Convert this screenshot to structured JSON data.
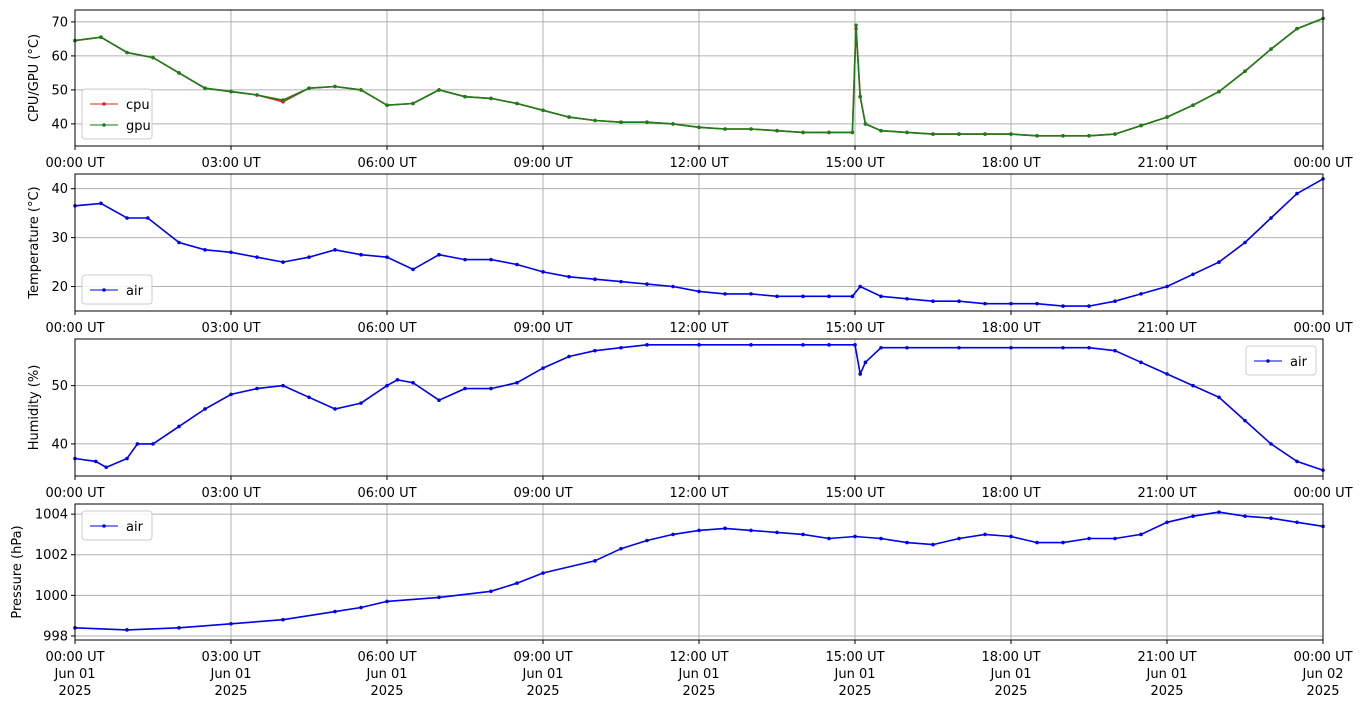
{
  "x_tick_labels": [
    "00:00 UT",
    "03:00 UT",
    "06:00 UT",
    "09:00 UT",
    "12:00 UT",
    "15:00 UT",
    "18:00 UT",
    "21:00 UT",
    "00:00 UT"
  ],
  "bottom_date_lines": [
    [
      "Jun 01",
      "2025"
    ],
    [
      "Jun 01",
      "2025"
    ],
    [
      "Jun 01",
      "2025"
    ],
    [
      "Jun 01",
      "2025"
    ],
    [
      "Jun 01",
      "2025"
    ],
    [
      "Jun 01",
      "2025"
    ],
    [
      "Jun 01",
      "2025"
    ],
    [
      "Jun 01",
      "2025"
    ],
    [
      "Jun 02",
      "2025"
    ]
  ],
  "colors": {
    "cpu": "#d62728",
    "gpu": "#1a7f1a",
    "air": "#0000ee",
    "grid": "#b0b0b0"
  },
  "chart_data": [
    {
      "type": "line",
      "ylabel": "CPU/GPU (°C)",
      "ylim": [
        33.5,
        73.5
      ],
      "yticks": [
        40,
        50,
        60,
        70
      ],
      "grid": true,
      "legend": "lower-left",
      "x_hours": [
        0,
        0.5,
        1,
        1.5,
        2,
        2.5,
        3,
        3.5,
        4,
        4.5,
        5,
        5.5,
        6,
        6.5,
        7,
        7.5,
        8,
        8.5,
        9,
        9.5,
        10,
        10.5,
        11,
        11.5,
        12,
        12.5,
        13,
        13.5,
        14,
        14.5,
        14.95,
        15.02,
        15.1,
        15.2,
        15.5,
        16,
        16.5,
        17,
        17.5,
        18,
        18.5,
        19,
        19.5,
        20,
        20.5,
        21,
        21.5,
        22,
        22.5,
        23,
        23.5,
        24
      ],
      "series": [
        {
          "name": "cpu",
          "color_key": "cpu",
          "values": [
            64.5,
            65.5,
            61,
            59.5,
            55,
            50.5,
            49.5,
            48.5,
            46.5,
            50.5,
            51,
            50,
            45.5,
            46,
            50,
            48,
            47.5,
            46,
            44,
            42,
            41,
            40.5,
            40.5,
            40,
            39,
            38.5,
            38.5,
            38,
            37.5,
            37.5,
            37.5,
            68,
            48,
            40,
            38,
            37.5,
            37,
            37,
            37,
            37,
            36.5,
            36.5,
            36.5,
            37,
            39.5,
            42,
            45.5,
            49.5,
            55.5,
            62,
            68,
            71
          ]
        },
        {
          "name": "gpu",
          "color_key": "gpu",
          "values": [
            64.5,
            65.5,
            61,
            59.5,
            55,
            50.5,
            49.5,
            48.5,
            47,
            50.5,
            51,
            50,
            45.5,
            46,
            50,
            48,
            47.5,
            46,
            44,
            42,
            41,
            40.5,
            40.5,
            40,
            39,
            38.5,
            38.5,
            38,
            37.5,
            37.5,
            37.5,
            69,
            48,
            40,
            38,
            37.5,
            37,
            37,
            37,
            37,
            36.5,
            36.5,
            36.5,
            37,
            39.5,
            42,
            45.5,
            49.5,
            55.5,
            62,
            68,
            71
          ]
        }
      ]
    },
    {
      "type": "line",
      "ylabel": "Temperature (°C)",
      "ylim": [
        15,
        43
      ],
      "yticks": [
        20,
        30,
        40
      ],
      "grid": true,
      "legend": "lower-left",
      "x_hours": [
        0,
        0.5,
        1,
        1.4,
        2,
        2.5,
        3,
        3.5,
        4,
        4.5,
        5,
        5.5,
        6,
        6.5,
        7,
        7.5,
        8,
        8.5,
        9,
        9.5,
        10,
        10.5,
        11,
        11.5,
        12,
        12.5,
        13,
        13.5,
        14,
        14.5,
        14.95,
        15.1,
        15.5,
        16,
        16.5,
        17,
        17.5,
        18,
        18.5,
        19,
        19.5,
        20,
        20.5,
        21,
        21.5,
        22,
        22.5,
        23,
        23.5,
        24
      ],
      "series": [
        {
          "name": "air",
          "color_key": "air",
          "values": [
            36.5,
            37,
            34,
            34,
            29,
            27.5,
            27,
            26,
            25,
            26,
            27.5,
            26.5,
            26,
            23.5,
            26.5,
            25.5,
            25.5,
            24.5,
            23,
            22,
            21.5,
            21,
            20.5,
            20,
            19,
            18.5,
            18.5,
            18,
            18,
            18,
            18,
            20,
            18,
            17.5,
            17,
            17,
            16.5,
            16.5,
            16.5,
            16,
            16,
            17,
            18.5,
            20,
            22.5,
            25,
            29,
            34,
            39,
            42
          ]
        }
      ]
    },
    {
      "type": "line",
      "ylabel": "Humidity (%)",
      "ylim": [
        34.5,
        58
      ],
      "yticks": [
        40,
        50
      ],
      "grid": true,
      "legend": "upper-right",
      "x_hours": [
        0,
        0.4,
        0.6,
        1,
        1.2,
        1.5,
        2,
        2.5,
        3,
        3.5,
        4,
        4.5,
        5,
        5.5,
        6,
        6.2,
        6.5,
        7,
        7.5,
        8,
        8.5,
        9,
        9.5,
        10,
        10.5,
        11,
        12,
        13,
        14,
        14.5,
        15,
        15.1,
        15.2,
        15.5,
        16,
        17,
        18,
        19,
        19.5,
        20,
        20.5,
        21,
        21.5,
        22,
        22.5,
        23,
        23.5,
        24
      ],
      "series": [
        {
          "name": "air",
          "color_key": "air",
          "values": [
            37.5,
            37,
            36,
            37.5,
            40,
            40,
            43,
            46,
            48.5,
            49.5,
            50,
            48,
            46,
            47,
            50,
            51,
            50.5,
            47.5,
            49.5,
            49.5,
            50.5,
            53,
            55,
            56,
            56.5,
            57,
            57,
            57,
            57,
            57,
            57,
            52,
            54,
            56.5,
            56.5,
            56.5,
            56.5,
            56.5,
            56.5,
            56,
            54,
            52,
            50,
            48,
            44,
            40,
            37,
            35.5
          ]
        }
      ]
    },
    {
      "type": "line",
      "ylabel": "Pressure (hPa)",
      "ylim": [
        997.8,
        1004.5
      ],
      "yticks": [
        998,
        1000,
        1002,
        1004
      ],
      "grid": true,
      "legend": "upper-left",
      "x_hours": [
        0,
        1,
        2,
        3,
        4,
        5,
        5.5,
        6,
        7,
        8,
        8.5,
        9,
        10,
        10.5,
        11,
        11.5,
        12,
        12.5,
        13,
        13.5,
        14,
        14.5,
        15,
        15.5,
        16,
        16.5,
        17,
        17.5,
        18,
        18.5,
        19,
        19.5,
        20,
        20.5,
        21,
        21.5,
        22,
        22.5,
        23,
        23.5,
        24
      ],
      "series": [
        {
          "name": "air",
          "color_key": "air",
          "values": [
            998.4,
            998.3,
            998.4,
            998.6,
            998.8,
            999.2,
            999.4,
            999.7,
            999.9,
            1000.2,
            1000.6,
            1001.1,
            1001.7,
            1002.3,
            1002.7,
            1003.0,
            1003.2,
            1003.3,
            1003.2,
            1003.1,
            1003.0,
            1002.8,
            1002.9,
            1002.8,
            1002.6,
            1002.5,
            1002.8,
            1003.0,
            1002.9,
            1002.6,
            1002.6,
            1002.8,
            1002.8,
            1003.0,
            1003.6,
            1003.9,
            1004.1,
            1003.9,
            1003.8,
            1003.6,
            1003.4
          ]
        }
      ]
    }
  ]
}
